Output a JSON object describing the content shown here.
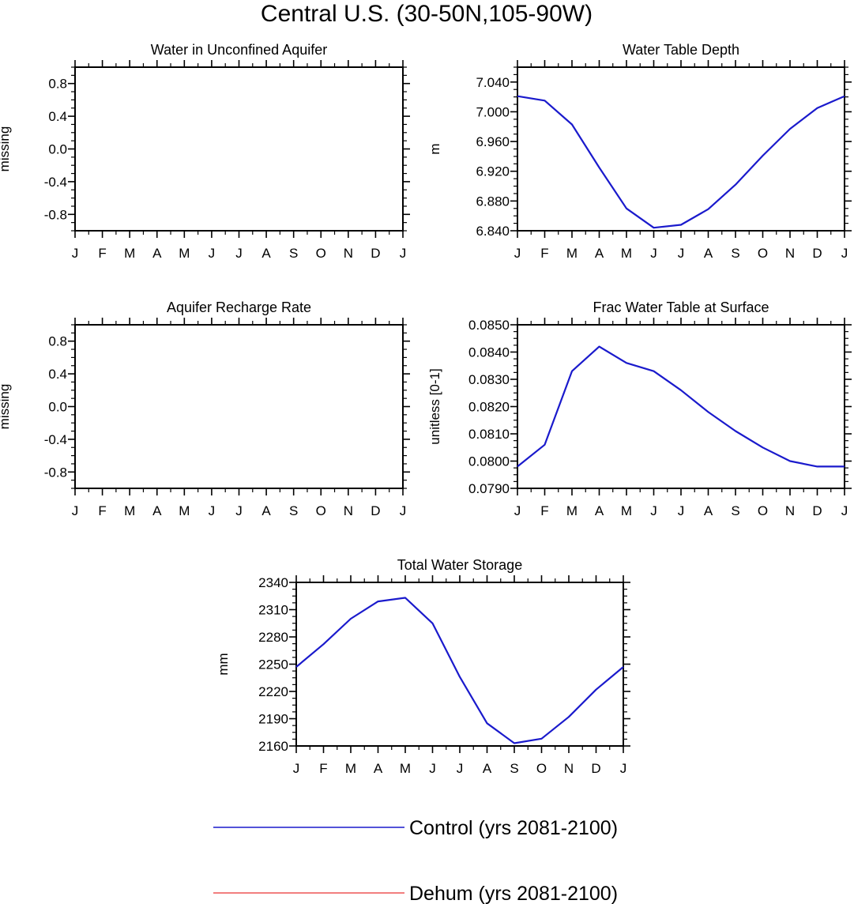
{
  "figure": {
    "title": "Central U.S. (30-50N,105-90W)"
  },
  "chart_data": [
    {
      "type": "line",
      "title": "Water in Unconfined Aquifer",
      "xlabel": "",
      "ylabel": "missing",
      "categories": [
        "J",
        "F",
        "M",
        "A",
        "M",
        "J",
        "J",
        "A",
        "S",
        "O",
        "N",
        "D",
        "J"
      ],
      "ylim": [
        -1.0,
        1.0
      ],
      "yticks": [
        -0.8,
        -0.4,
        0.0,
        0.4,
        0.8
      ],
      "ytick_labels": [
        "-0.8",
        "-0.4",
        "0.0",
        "0.4",
        "0.8"
      ],
      "series": []
    },
    {
      "type": "line",
      "title": "Water Table Depth",
      "xlabel": "",
      "ylabel": "m",
      "categories": [
        "J",
        "F",
        "M",
        "A",
        "M",
        "J",
        "J",
        "A",
        "S",
        "O",
        "N",
        "D",
        "J"
      ],
      "ylim": [
        6.84,
        7.06
      ],
      "yticks": [
        6.84,
        6.88,
        6.92,
        6.96,
        7.0,
        7.04
      ],
      "ytick_labels": [
        "6.840",
        "6.880",
        "6.920",
        "6.960",
        "7.000",
        "7.040"
      ],
      "series": [
        {
          "name": "Control (yrs 2081-2100)",
          "color": "#1a1acc",
          "values": [
            7.021,
            7.015,
            6.983,
            6.925,
            6.87,
            6.844,
            6.848,
            6.869,
            6.902,
            6.941,
            6.977,
            7.005,
            7.021
          ]
        }
      ]
    },
    {
      "type": "line",
      "title": "Aquifer Recharge Rate",
      "xlabel": "",
      "ylabel": "missing",
      "categories": [
        "J",
        "F",
        "M",
        "A",
        "M",
        "J",
        "J",
        "A",
        "S",
        "O",
        "N",
        "D",
        "J"
      ],
      "ylim": [
        -1.0,
        1.0
      ],
      "yticks": [
        -0.8,
        -0.4,
        0.0,
        0.4,
        0.8
      ],
      "ytick_labels": [
        "-0.8",
        "-0.4",
        "0.0",
        "0.4",
        "0.8"
      ],
      "series": []
    },
    {
      "type": "line",
      "title": "Frac Water Table at Surface",
      "xlabel": "",
      "ylabel": "unitless [0-1]",
      "categories": [
        "J",
        "F",
        "M",
        "A",
        "M",
        "J",
        "J",
        "A",
        "S",
        "O",
        "N",
        "D",
        "J"
      ],
      "ylim": [
        0.079,
        0.085
      ],
      "yticks": [
        0.079,
        0.08,
        0.081,
        0.082,
        0.083,
        0.084,
        0.085
      ],
      "ytick_labels": [
        "0.0790",
        "0.0800",
        "0.0810",
        "0.0820",
        "0.0830",
        "0.0840",
        "0.0850"
      ],
      "series": [
        {
          "name": "Control (yrs 2081-2100)",
          "color": "#1a1acc",
          "values": [
            0.0798,
            0.0806,
            0.0833,
            0.0842,
            0.0836,
            0.0833,
            0.0826,
            0.0818,
            0.0811,
            0.0805,
            0.08,
            0.0798,
            0.0798
          ]
        }
      ]
    },
    {
      "type": "line",
      "title": "Total Water Storage",
      "xlabel": "",
      "ylabel": "mm",
      "categories": [
        "J",
        "F",
        "M",
        "A",
        "M",
        "J",
        "J",
        "A",
        "S",
        "O",
        "N",
        "D",
        "J"
      ],
      "ylim": [
        2160,
        2340
      ],
      "yticks": [
        2160,
        2190,
        2220,
        2250,
        2280,
        2310,
        2340
      ],
      "ytick_labels": [
        "2160",
        "2190",
        "2220",
        "2250",
        "2280",
        "2310",
        "2340"
      ],
      "series": [
        {
          "name": "Control (yrs 2081-2100)",
          "color": "#1a1acc",
          "values": [
            2247,
            2272,
            2300,
            2319,
            2323,
            2295,
            2236,
            2185,
            2163,
            2168,
            2192,
            2222,
            2247
          ]
        }
      ]
    }
  ],
  "legend": {
    "entries": [
      {
        "label": "Control (yrs 2081-2100)",
        "color": "#1a1acc"
      },
      {
        "label": "Dehum (yrs 2081-2100)",
        "color": "#ee5555"
      }
    ]
  }
}
